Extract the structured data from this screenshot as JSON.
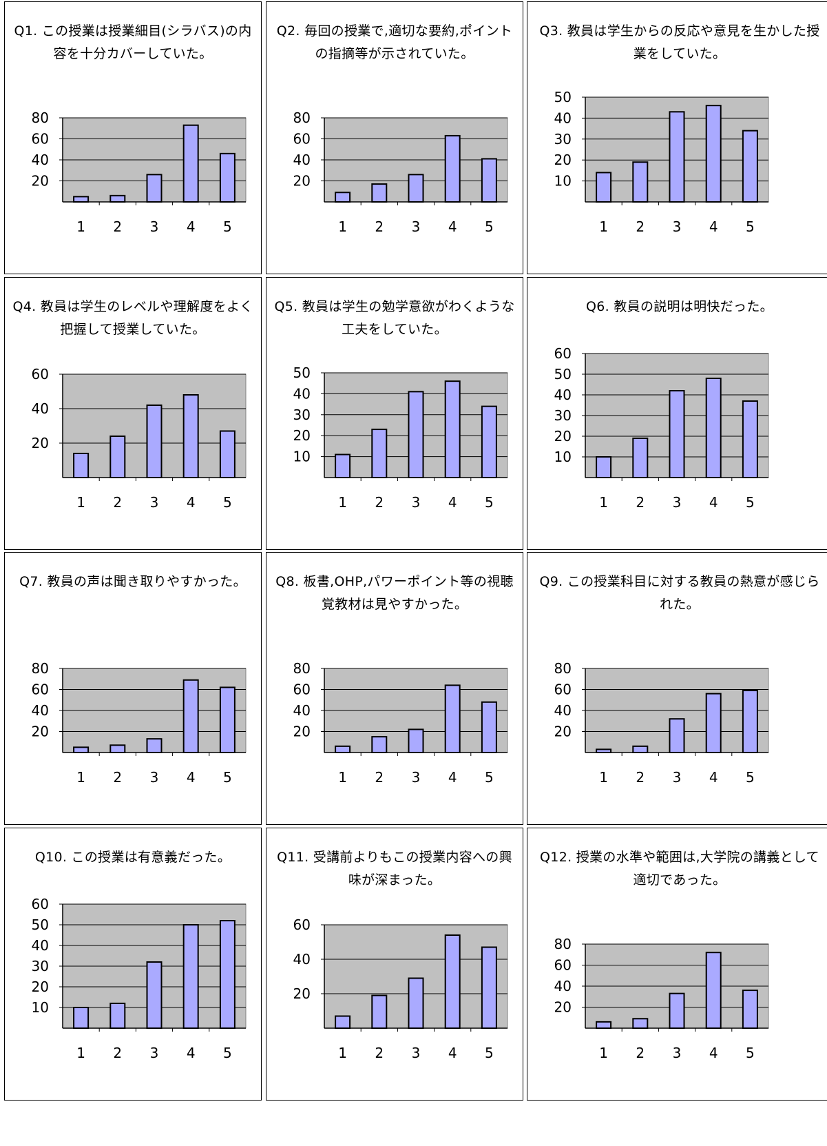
{
  "page": {
    "background": "#ffffff"
  },
  "style": {
    "plot_background": "#c0c0c0",
    "bar_fill": "#aaaaff",
    "bar_stroke": "#000000",
    "gridline": "#000000"
  },
  "chart_data": [
    {
      "type": "bar",
      "title": "Q1. この授業は授業細目(シラバス)の内容を十分カバーしていた。",
      "categories": [
        "1",
        "2",
        "3",
        "4",
        "5"
      ],
      "values": [
        5,
        6,
        26,
        73,
        46
      ],
      "ylim": [
        0,
        80
      ],
      "yticks": [
        20,
        40,
        60,
        80
      ]
    },
    {
      "type": "bar",
      "title": "Q2. 毎回の授業で,適切な要約,ポイントの指摘等が示されていた。",
      "categories": [
        "1",
        "2",
        "3",
        "4",
        "5"
      ],
      "values": [
        9,
        17,
        26,
        63,
        41
      ],
      "ylim": [
        0,
        80
      ],
      "yticks": [
        20,
        40,
        60,
        80
      ]
    },
    {
      "type": "bar",
      "title": "Q3. 教員は学生からの反応や意見を生かした授業をしていた。",
      "categories": [
        "1",
        "2",
        "3",
        "4",
        "5"
      ],
      "values": [
        14,
        19,
        43,
        46,
        34
      ],
      "ylim": [
        0,
        50
      ],
      "yticks": [
        10,
        20,
        30,
        40,
        50
      ]
    },
    {
      "type": "bar",
      "title": "Q4. 教員は学生のレベルや理解度をよく把握して授業していた。",
      "categories": [
        "1",
        "2",
        "3",
        "4",
        "5"
      ],
      "values": [
        14,
        24,
        42,
        48,
        27
      ],
      "ylim": [
        0,
        60
      ],
      "yticks": [
        20,
        40,
        60
      ]
    },
    {
      "type": "bar",
      "title": "Q5. 教員は学生の勉学意欲がわくような工夫をしていた。",
      "categories": [
        "1",
        "2",
        "3",
        "4",
        "5"
      ],
      "values": [
        11,
        23,
        41,
        46,
        34
      ],
      "ylim": [
        0,
        50
      ],
      "yticks": [
        10,
        20,
        30,
        40,
        50
      ]
    },
    {
      "type": "bar",
      "title": "Q6. 教員の説明は明快だった。",
      "categories": [
        "1",
        "2",
        "3",
        "4",
        "5"
      ],
      "values": [
        10,
        19,
        42,
        48,
        37
      ],
      "ylim": [
        0,
        60
      ],
      "yticks": [
        10,
        20,
        30,
        40,
        50,
        60
      ]
    },
    {
      "type": "bar",
      "title": "Q7. 教員の声は聞き取りやすかった。",
      "categories": [
        "1",
        "2",
        "3",
        "4",
        "5"
      ],
      "values": [
        5,
        7,
        13,
        69,
        62
      ],
      "ylim": [
        0,
        80
      ],
      "yticks": [
        20,
        40,
        60,
        80
      ]
    },
    {
      "type": "bar",
      "title": "Q8. 板書,OHP,パワーポイント等の視聴覚教材は見やすかった。",
      "categories": [
        "1",
        "2",
        "3",
        "4",
        "5"
      ],
      "values": [
        6,
        15,
        22,
        64,
        48
      ],
      "ylim": [
        0,
        80
      ],
      "yticks": [
        20,
        40,
        60,
        80
      ]
    },
    {
      "type": "bar",
      "title": "Q9. この授業科目に対する教員の熱意が感じられた。",
      "categories": [
        "1",
        "2",
        "3",
        "4",
        "5"
      ],
      "values": [
        3,
        6,
        32,
        56,
        59
      ],
      "ylim": [
        0,
        80
      ],
      "yticks": [
        20,
        40,
        60,
        80
      ]
    },
    {
      "type": "bar",
      "title": "Q10. この授業は有意義だった。",
      "categories": [
        "1",
        "2",
        "3",
        "4",
        "5"
      ],
      "values": [
        10,
        12,
        32,
        50,
        52
      ],
      "ylim": [
        0,
        60
      ],
      "yticks": [
        10,
        20,
        30,
        40,
        50,
        60
      ]
    },
    {
      "type": "bar",
      "title": "Q11. 受講前よりもこの授業内容への興味が深まった。",
      "categories": [
        "1",
        "2",
        "3",
        "4",
        "5"
      ],
      "values": [
        7,
        19,
        29,
        54,
        47
      ],
      "ylim": [
        0,
        60
      ],
      "yticks": [
        20,
        40,
        60
      ]
    },
    {
      "type": "bar",
      "title": "Q12. 授業の水準や範囲は,大学院の講義として適切であった。",
      "categories": [
        "1",
        "2",
        "3",
        "4",
        "5"
      ],
      "values": [
        6,
        9,
        33,
        72,
        36
      ],
      "ylim": [
        0,
        80
      ],
      "yticks": [
        20,
        40,
        60,
        80
      ]
    }
  ]
}
